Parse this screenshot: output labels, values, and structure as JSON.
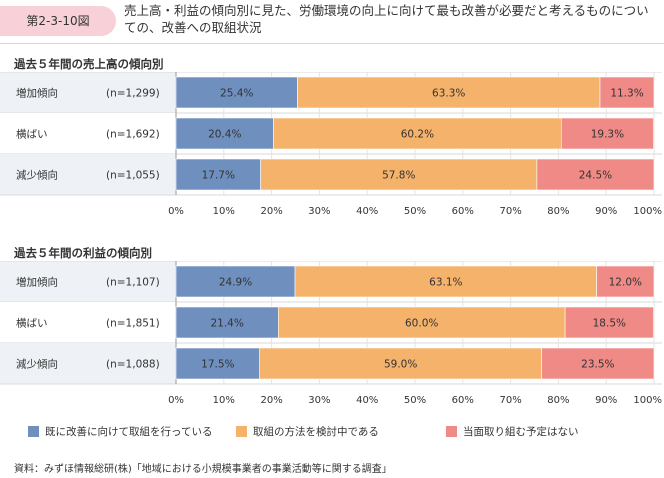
{
  "figure": {
    "label": "第2-3-10図",
    "title": "売上高・利益の傾向別に見た、労働環境の向上に向けて最も改善が必要だと考えるものについての、改善への取組状況"
  },
  "colors": {
    "blue": "#6f8fbf",
    "orange": "#f5b26b",
    "red": "#ef8a87"
  },
  "chart_data": [
    {
      "type": "bar",
      "orientation": "horizontal-stacked-100",
      "title": "過去５年間の売上高の傾向別",
      "categories": [
        "増加傾向",
        "横ばい",
        "減少傾向"
      ],
      "n_labels": [
        "(n=1,299)",
        "(n=1,692)",
        "(n=1,055)"
      ],
      "series": [
        {
          "name": "既に改善に向けて取組を行っている",
          "values": [
            25.4,
            20.4,
            17.7
          ]
        },
        {
          "name": "取組の方法を検討中である",
          "values": [
            63.3,
            60.2,
            57.8
          ]
        },
        {
          "name": "当面取り組む予定はない",
          "values": [
            11.3,
            19.3,
            24.5
          ]
        }
      ],
      "xlim": [
        0,
        100
      ],
      "x_ticks": [
        "0%",
        "10%",
        "20%",
        "30%",
        "40%",
        "50%",
        "60%",
        "70%",
        "80%",
        "90%",
        "100%"
      ],
      "grid": true
    },
    {
      "type": "bar",
      "orientation": "horizontal-stacked-100",
      "title": "過去５年間の利益の傾向別",
      "categories": [
        "増加傾向",
        "横ばい",
        "減少傾向"
      ],
      "n_labels": [
        "(n=1,107)",
        "(n=1,851)",
        "(n=1,088)"
      ],
      "series": [
        {
          "name": "既に改善に向けて取組を行っている",
          "values": [
            24.9,
            21.4,
            17.5
          ]
        },
        {
          "name": "取組の方法を検討中である",
          "values": [
            63.1,
            60.0,
            59.0
          ]
        },
        {
          "name": "当面取り組む予定はない",
          "values": [
            12.0,
            18.5,
            23.5
          ]
        }
      ],
      "xlim": [
        0,
        100
      ],
      "x_ticks": [
        "0%",
        "10%",
        "20%",
        "30%",
        "40%",
        "50%",
        "60%",
        "70%",
        "80%",
        "90%",
        "100%"
      ],
      "grid": true
    }
  ],
  "legend": {
    "placement": "bottom",
    "items": [
      "既に改善に向けて取組を行っている",
      "取組の方法を検討中である",
      "当面取り組む予定はない"
    ]
  },
  "source": "資料：みずほ情報総研(株)「地域における小規模事業者の事業活動等に関する調査」"
}
